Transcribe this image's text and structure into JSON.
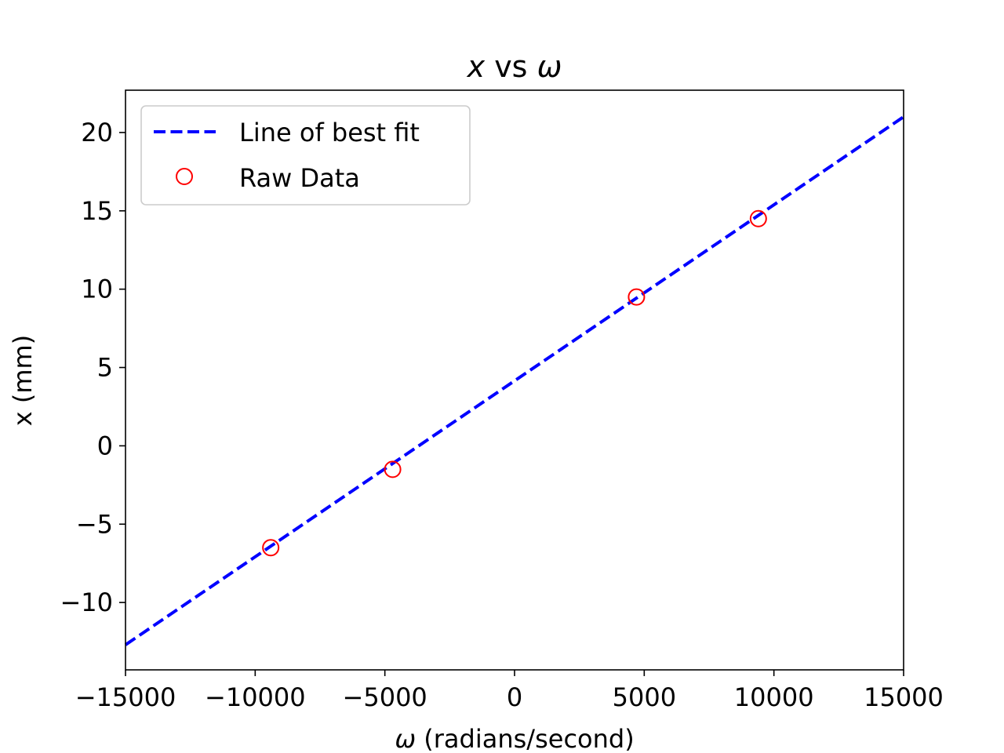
{
  "chart_data": {
    "type": "scatter",
    "title": {
      "var1": "x",
      "mid": " vs ",
      "var2": "ω"
    },
    "xlabel": {
      "symbol": "ω",
      "rest": " (radians/second)"
    },
    "ylabel": "x (mm)",
    "xlim": [
      -15000,
      15000
    ],
    "ylim": [
      -14.3,
      22.7
    ],
    "xticks": [
      -15000,
      -10000,
      -5000,
      0,
      5000,
      10000,
      15000
    ],
    "xtick_labels": [
      "−15000",
      "−10000",
      "−5000",
      "0",
      "5000",
      "10000",
      "15000"
    ],
    "yticks": [
      -10,
      -5,
      0,
      5,
      10,
      15,
      20
    ],
    "ytick_labels": [
      "−10",
      "−5",
      "0",
      "5",
      "10",
      "15",
      "20"
    ],
    "grid": false,
    "legend_position": "top-left",
    "series": [
      {
        "name": "Line of best fit",
        "kind": "line",
        "style": "dashed",
        "color": "#0000ff",
        "x": [
          -15000,
          15000
        ],
        "y": [
          -12.7,
          21.0
        ]
      },
      {
        "name": "Raw Data",
        "kind": "scatter",
        "marker": "open-circle",
        "color": "#ff0000",
        "x": [
          -9400,
          -4700,
          4700,
          9400
        ],
        "y": [
          -6.5,
          -1.5,
          9.5,
          14.5
        ]
      }
    ]
  }
}
